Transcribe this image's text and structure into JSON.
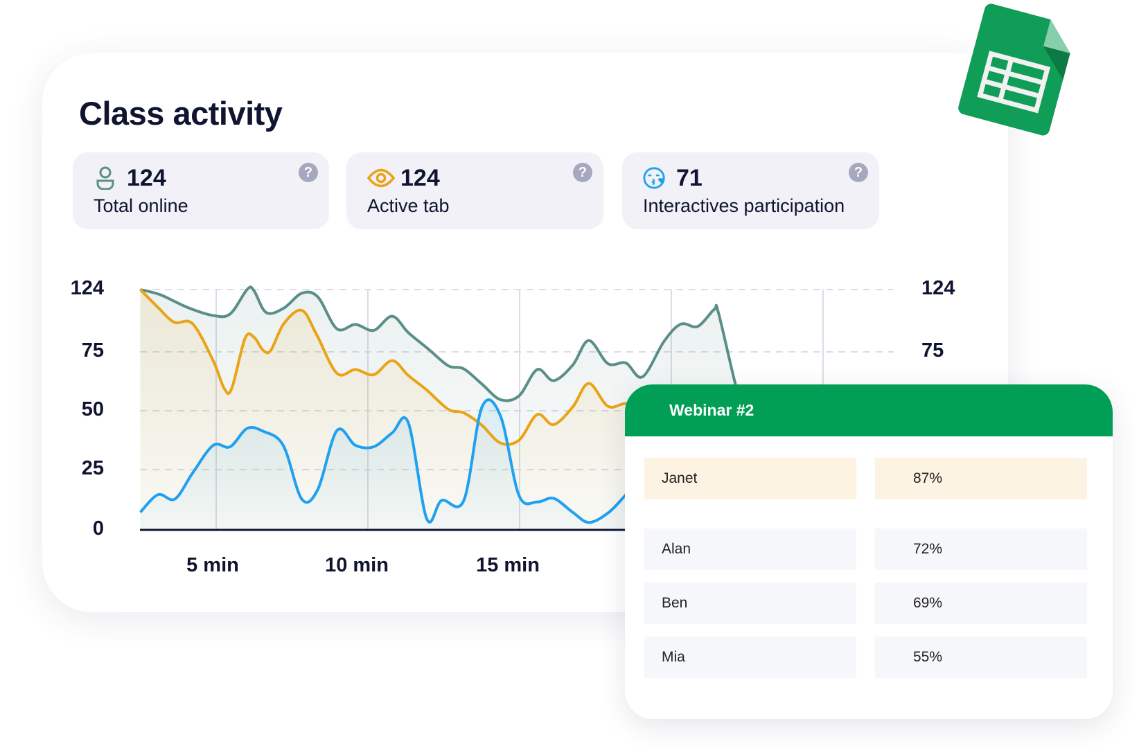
{
  "title": "Class activity",
  "stats": [
    {
      "icon": "user-icon",
      "value": "124",
      "label": "Total online",
      "help": "?"
    },
    {
      "icon": "eye-icon",
      "value": "124",
      "label": "Active tab",
      "help": "?"
    },
    {
      "icon": "kiss-face-icon",
      "value": "71",
      "label": "Interactives participation",
      "help": "?"
    }
  ],
  "colors": {
    "teal": "#5a8f87",
    "orange": "#eaa316",
    "blue": "#1fa0f0",
    "green": "#019f55"
  },
  "chart_data": {
    "type": "line",
    "title": "",
    "xlabel": "",
    "ylabel": "",
    "xlim": [
      2.5,
      27.5
    ],
    "ylim": [
      0,
      124
    ],
    "y_ticks": [
      "0",
      "25",
      "50",
      "75",
      "124"
    ],
    "y_ticks_right": [
      "75",
      "124"
    ],
    "x_ticks": [
      {
        "value": 5,
        "label": "5 min"
      },
      {
        "value": 10,
        "label": "10 min"
      },
      {
        "value": 15,
        "label": "15 min"
      }
    ],
    "grid": true,
    "series": [
      {
        "name": "Total online",
        "color": "#5a8f87",
        "x": [
          2.48,
          3.16,
          4.05,
          4.9,
          5.46,
          6.02,
          6.24,
          6.65,
          7.23,
          7.82,
          8.35,
          8.98,
          9.59,
          10.19,
          10.8,
          11.33,
          11.99,
          12.65,
          13.16,
          13.76,
          14.37,
          14.98,
          15.58,
          16.12,
          16.75,
          17.28,
          17.91,
          18.5,
          19.05,
          19.76,
          20.31,
          20.87,
          21.41,
          21.55,
          22.13,
          22.6
        ],
        "y": [
          124,
          119.9,
          110,
          103.6,
          104.8,
          124,
          123.4,
          105.9,
          109.4,
          121.1,
          118.2,
          93.1,
          96.6,
          91.9,
          103,
          90.2,
          77.3,
          69.1,
          67.8,
          61.3,
          54.7,
          56.3,
          67.5,
          62.8,
          69.4,
          83.9,
          70,
          70.3,
          64.4,
          83.3,
          96.8,
          95,
          108.3,
          105.9,
          60.3,
          40
        ]
      },
      {
        "name": "Active tab",
        "color": "#eaa316",
        "x": [
          2.48,
          3.08,
          3.62,
          4.22,
          4.9,
          5.27,
          5.51,
          5.95,
          6.24,
          6.55,
          6.8,
          7.23,
          7.82,
          8.3,
          8.98,
          9.59,
          10.19,
          10.8,
          11.33,
          11.94,
          12.65,
          13.16,
          13.76,
          14.37,
          14.98,
          15.58,
          16.12,
          16.75,
          17.28,
          17.91,
          18.5,
          19.2
        ],
        "y": [
          124,
          110,
          98.3,
          97.2,
          71.3,
          59.4,
          59.4,
          85.5,
          86.7,
          76.2,
          76.2,
          97.2,
          107.7,
          89.1,
          65.9,
          67.5,
          65.3,
          71.3,
          65,
          58.8,
          50.6,
          49.1,
          43.8,
          36.3,
          37.5,
          48.4,
          44.1,
          51.6,
          61.6,
          51.9,
          53.1,
          52
        ]
      },
      {
        "name": "Interactives participation",
        "color": "#1fa0f0",
        "x": [
          2.48,
          3.08,
          3.64,
          4.22,
          4.9,
          5.46,
          6.02,
          6.55,
          7.21,
          7.82,
          8.35,
          8.98,
          9.59,
          10.19,
          10.8,
          11.33,
          11.94,
          12.43,
          13.16,
          13.76,
          14.37,
          14.98,
          15.58,
          16.12,
          16.75,
          17.28,
          17.91,
          18.5,
          19.2
        ],
        "y": [
          7.3,
          14.6,
          12.8,
          23.5,
          35.3,
          34.7,
          42.5,
          41.3,
          35.3,
          12.8,
          16.8,
          41.6,
          35.3,
          34.7,
          40.6,
          45,
          4.6,
          12.2,
          12.2,
          51.6,
          47.8,
          14.3,
          11.6,
          13.1,
          7.3,
          3.1,
          7,
          14.6,
          25
        ]
      }
    ]
  },
  "webinar": {
    "title": "Webinar #2",
    "rows": [
      {
        "name": "Janet",
        "value": "87%"
      },
      {
        "name": "Alan",
        "value": "72%"
      },
      {
        "name": "Ben",
        "value": "69%"
      },
      {
        "name": "Mia",
        "value": "55%"
      }
    ]
  }
}
